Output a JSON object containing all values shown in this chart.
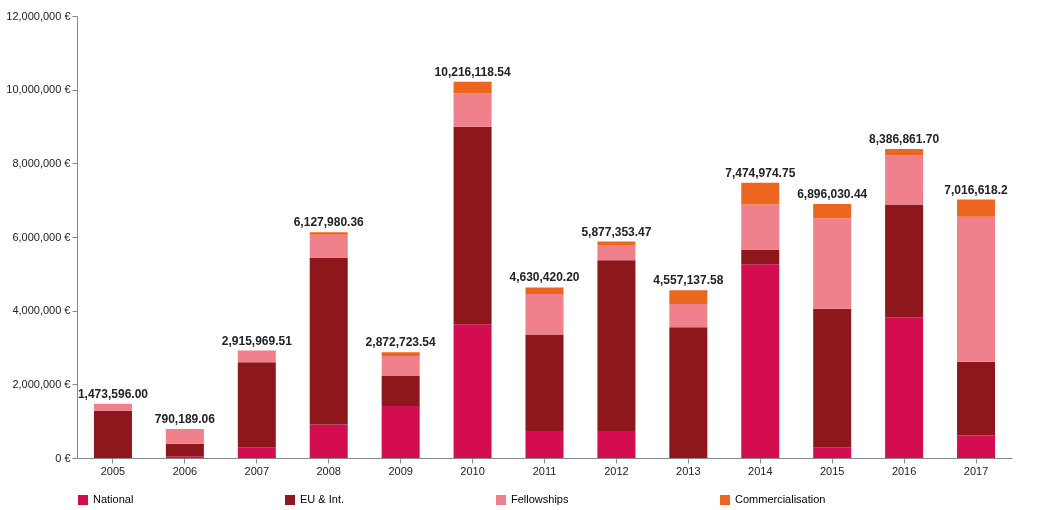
{
  "chart_data": {
    "type": "bar",
    "stacked": true,
    "legend": "bottom",
    "grid": false,
    "categories": [
      "2005",
      "2006",
      "2007",
      "2008",
      "2009",
      "2010",
      "2011",
      "2012",
      "2013",
      "2014",
      "2015",
      "2016",
      "2017"
    ],
    "series": [
      {
        "name": "National",
        "color": "#d40c50",
        "values": [
          0,
          50000,
          290000,
          910000,
          1410000,
          3630000,
          730000,
          730000,
          0,
          5260000,
          290000,
          3820000,
          610000
        ]
      },
      {
        "name": "EU & Int.",
        "color": "#8e171c",
        "values": [
          1280000,
          340000,
          2310000,
          4520000,
          830000,
          5360000,
          2620000,
          4640000,
          3550000,
          390000,
          3760000,
          3060000,
          2000000
        ]
      },
      {
        "name": "Fellowships",
        "color": "#ef808c",
        "values": [
          193596,
          400189.06,
          315969.51,
          630000,
          530000,
          910000,
          1100000,
          410000,
          630000,
          1230000,
          2460000,
          1340000,
          3940000
        ]
      },
      {
        "name": "Commercialisation",
        "color": "#ec6620",
        "values": [
          0,
          0,
          0,
          67980.36,
          102723.54,
          316118.54,
          180420.2,
          97353.47,
          377137.58,
          594974.75,
          386030.44,
          166861.7,
          466618.2
        ]
      }
    ],
    "totals": [
      "1,473,596.00",
      "790,189.06",
      "2,915,969.51",
      "6,127,980.36",
      "2,872,723.54",
      "10,216,118.54",
      "4,630,420.20",
      "5,877,353.47",
      "4,557,137.58",
      "7,474,974.75",
      "6,896,030.44",
      "8,386,861.70",
      "7,016,618.2"
    ],
    "ylim": [
      0,
      12000000
    ],
    "yticks": [
      {
        "value": 0,
        "label": "0 €"
      },
      {
        "value": 2000000,
        "label": "2,000,000 €"
      },
      {
        "value": 4000000,
        "label": "4,000,000 €"
      },
      {
        "value": 6000000,
        "label": "6,000,000 €"
      },
      {
        "value": 8000000,
        "label": "8,000,000 €"
      },
      {
        "value": 10000000,
        "label": "10,000,000 €"
      },
      {
        "value": 12000000,
        "label": "12,000,000 €"
      }
    ]
  }
}
